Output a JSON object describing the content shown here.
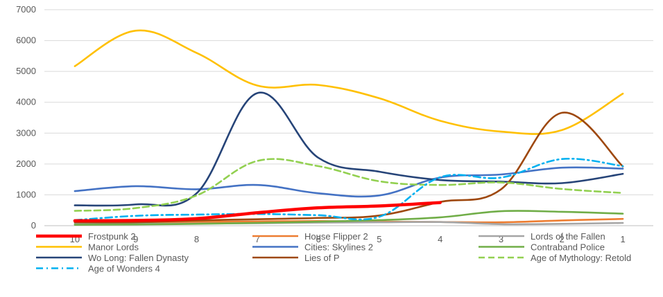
{
  "chart_data": {
    "type": "line",
    "title": "",
    "xlabel": "",
    "ylabel": "",
    "categories": [
      "10",
      "9",
      "8",
      "7",
      "6",
      "5",
      "4",
      "3",
      "2",
      "1"
    ],
    "ylim": [
      0,
      7000
    ],
    "yticks": [
      0,
      1000,
      2000,
      3000,
      4000,
      5000,
      6000,
      7000
    ],
    "grid": true,
    "legend_position": "bottom",
    "series": [
      {
        "name": "Frostpunk 2",
        "color": "#ff0000",
        "style": "solid-thick",
        "values": [
          160,
          170,
          230,
          420,
          580,
          640,
          750,
          null,
          null,
          null
        ]
      },
      {
        "name": "House Flipper 2",
        "color": "#ed7d31",
        "style": "solid",
        "values": [
          120,
          110,
          120,
          140,
          150,
          130,
          120,
          110,
          170,
          220
        ]
      },
      {
        "name": "Lords of the Fallen",
        "color": "#a5a5a5",
        "style": "solid",
        "values": [
          60,
          60,
          70,
          80,
          100,
          110,
          120,
          50,
          60,
          90
        ]
      },
      {
        "name": "Manor Lords",
        "color": "#ffc000",
        "style": "solid",
        "values": [
          5170,
          6320,
          5600,
          4540,
          4560,
          4130,
          3400,
          3050,
          3100,
          4280
        ]
      },
      {
        "name": "Cities: Skylines 2",
        "color": "#4472c4",
        "style": "solid",
        "values": [
          1120,
          1280,
          1180,
          1320,
          1050,
          980,
          1560,
          1660,
          1880,
          1850
        ]
      },
      {
        "name": "Contraband Police",
        "color": "#70ad47",
        "style": "solid",
        "values": [
          30,
          40,
          60,
          90,
          130,
          180,
          270,
          470,
          450,
          390
        ]
      },
      {
        "name": "Wo Long: Fallen Dynasty",
        "color": "#264478",
        "style": "solid",
        "values": [
          660,
          690,
          1050,
          4300,
          2200,
          1750,
          1480,
          1430,
          1380,
          1680
        ]
      },
      {
        "name": "Lies of P",
        "color": "#9e480e",
        "style": "solid",
        "values": [
          110,
          110,
          170,
          210,
          250,
          330,
          770,
          1180,
          3660,
          1920
        ]
      },
      {
        "name": "Age of Mythology: Retold",
        "color": "#92d050",
        "style": "dash",
        "values": [
          480,
          570,
          980,
          2100,
          1930,
          1440,
          1320,
          1400,
          1190,
          1060
        ]
      },
      {
        "name": "Age of Wonders 4",
        "color": "#00b0f0",
        "style": "dashdot",
        "values": [
          180,
          320,
          360,
          380,
          340,
          290,
          1570,
          1560,
          2160,
          1930
        ]
      }
    ]
  }
}
